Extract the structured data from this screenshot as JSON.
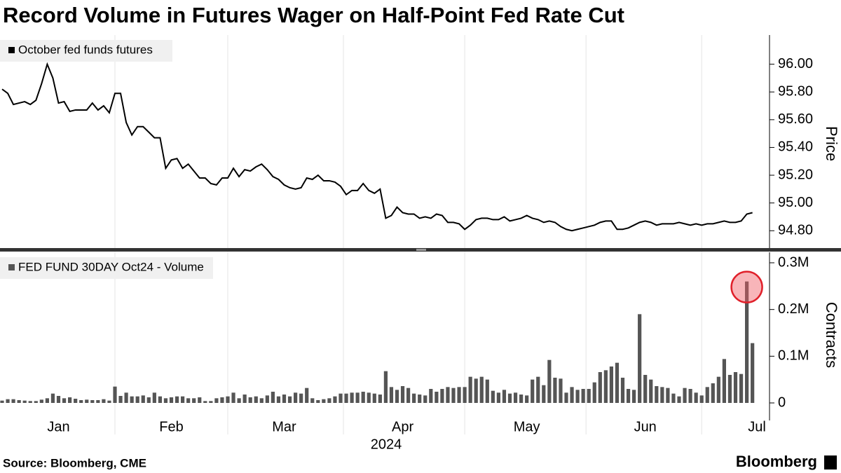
{
  "chart_data": [
    {
      "type": "line",
      "title": "Record Volume in Futures Wager on Half-Point Fed Rate Cut",
      "y_label": "Price",
      "series": [
        {
          "name": "October fed funds futures",
          "color": "#000000",
          "values": [
            95.82,
            95.79,
            95.71,
            95.72,
            95.73,
            95.71,
            95.74,
            95.86,
            96.0,
            95.9,
            95.72,
            95.73,
            95.66,
            95.67,
            95.67,
            95.67,
            95.72,
            95.67,
            95.7,
            95.65,
            95.79,
            95.79,
            95.58,
            95.49,
            95.55,
            95.55,
            95.51,
            95.47,
            95.47,
            95.25,
            95.31,
            95.32,
            95.25,
            95.28,
            95.23,
            95.18,
            95.18,
            95.14,
            95.13,
            95.18,
            95.18,
            95.25,
            95.19,
            95.24,
            95.23,
            95.26,
            95.28,
            95.24,
            95.19,
            95.17,
            95.13,
            95.11,
            95.1,
            95.11,
            95.18,
            95.17,
            95.2,
            95.16,
            95.16,
            95.15,
            95.12,
            95.06,
            95.09,
            95.09,
            95.14,
            95.09,
            95.07,
            95.1,
            94.89,
            94.91,
            94.97,
            94.93,
            94.92,
            94.92,
            94.89,
            94.9,
            94.89,
            94.92,
            94.91,
            94.86,
            94.86,
            94.85,
            94.81,
            94.84,
            94.88,
            94.89,
            94.89,
            94.88,
            94.88,
            94.9,
            94.87,
            94.88,
            94.89,
            94.91,
            94.89,
            94.88,
            94.86,
            94.87,
            94.86,
            94.83,
            94.81,
            94.8,
            94.81,
            94.82,
            94.83,
            94.84,
            94.86,
            94.87,
            94.87,
            94.81,
            94.81,
            94.82,
            94.84,
            94.86,
            94.87,
            94.86,
            94.84,
            94.85,
            94.85,
            94.85,
            94.86,
            94.85,
            94.84,
            94.85,
            94.84,
            94.85,
            94.85,
            94.86,
            94.87,
            94.86,
            94.86,
            94.87,
            94.92,
            94.93,
            null
          ]
        }
      ],
      "ylim": [
        94.67,
        96.2
      ],
      "yticks": [
        {
          "value": 96,
          "label": "96.00"
        },
        {
          "value": 95.8,
          "label": "95.80"
        },
        {
          "value": 95.6,
          "label": "95.60"
        },
        {
          "value": 95.4,
          "label": "95.40"
        },
        {
          "value": 95.2,
          "label": "95.20"
        },
        {
          "value": 95,
          "label": "95.00"
        },
        {
          "value": 94.8,
          "label": "94.80"
        }
      ]
    },
    {
      "type": "bar",
      "y_label": "Contracts",
      "x_label": "2024",
      "categories": [
        null,
        null,
        null,
        null,
        null,
        null,
        null,
        null,
        null,
        null,
        "Jan",
        null,
        null,
        null,
        null,
        null,
        null,
        null,
        null,
        null,
        null,
        null,
        null,
        null,
        null,
        null,
        null,
        null,
        null,
        null,
        "Feb",
        null,
        null,
        null,
        null,
        null,
        null,
        null,
        null,
        null,
        null,
        null,
        null,
        null,
        null,
        null,
        null,
        null,
        null,
        null,
        "Mar",
        null,
        null,
        null,
        null,
        null,
        null,
        null,
        null,
        null,
        null,
        null,
        null,
        null,
        null,
        null,
        null,
        null,
        null,
        null,
        null,
        "Apr",
        null,
        null,
        null,
        null,
        null,
        null,
        null,
        null,
        null,
        null,
        null,
        null,
        null,
        null,
        null,
        null,
        null,
        null,
        null,
        null,
        null,
        "May",
        null,
        null,
        null,
        null,
        null,
        null,
        null,
        null,
        null,
        null,
        null,
        null,
        null,
        null,
        null,
        null,
        null,
        null,
        null,
        null,
        "Jun",
        null,
        null,
        null,
        null,
        null,
        null,
        null,
        null,
        null,
        null,
        null,
        null,
        null,
        null,
        null,
        null,
        null,
        null,
        null,
        "Jul"
      ],
      "series": [
        {
          "name": "FED FUND 30DAY Oct24 - Volume",
          "color": "#555555",
          "values": [
            5000,
            8000,
            8000,
            6000,
            5000,
            4000,
            4000,
            7000,
            10000,
            20000,
            15000,
            10000,
            12000,
            9000,
            6000,
            7000,
            6000,
            6000,
            8000,
            5000,
            35000,
            15000,
            22000,
            14000,
            14000,
            16000,
            12000,
            22000,
            14000,
            10000,
            12000,
            14000,
            14000,
            10000,
            10000,
            12000,
            4000,
            4000,
            10000,
            12000,
            14000,
            22000,
            10000,
            18000,
            12000,
            14000,
            10000,
            16000,
            24000,
            14000,
            18000,
            14000,
            22000,
            20000,
            32000,
            10000,
            6000,
            8000,
            10000,
            14000,
            20000,
            20000,
            22000,
            22000,
            24000,
            22000,
            20000,
            18000,
            68000,
            34000,
            28000,
            36000,
            32000,
            20000,
            18000,
            16000,
            30000,
            24000,
            30000,
            34000,
            32000,
            34000,
            34000,
            56000,
            52000,
            56000,
            50000,
            26000,
            22000,
            28000,
            20000,
            22000,
            18000,
            16000,
            50000,
            56000,
            38000,
            92000,
            54000,
            52000,
            22000,
            34000,
            28000,
            30000,
            30000,
            44000,
            66000,
            70000,
            78000,
            86000,
            54000,
            30000,
            28000,
            190000,
            60000,
            50000,
            36000,
            34000,
            32000,
            20000,
            14000,
            32000,
            30000,
            22000,
            16000,
            34000,
            42000,
            56000,
            94000,
            60000,
            66000,
            62000,
            260000,
            128000,
            null
          ]
        }
      ],
      "ylim": [
        -37500,
        319500
      ],
      "yticks": [
        {
          "value": 300000,
          "label": "0.3M"
        },
        {
          "value": 200000,
          "label": "0.2M"
        },
        {
          "value": 100000,
          "label": "0.1M"
        },
        0
      ]
    }
  ],
  "source": "Source: Bloomberg, CME",
  "brand": "Bloomberg"
}
